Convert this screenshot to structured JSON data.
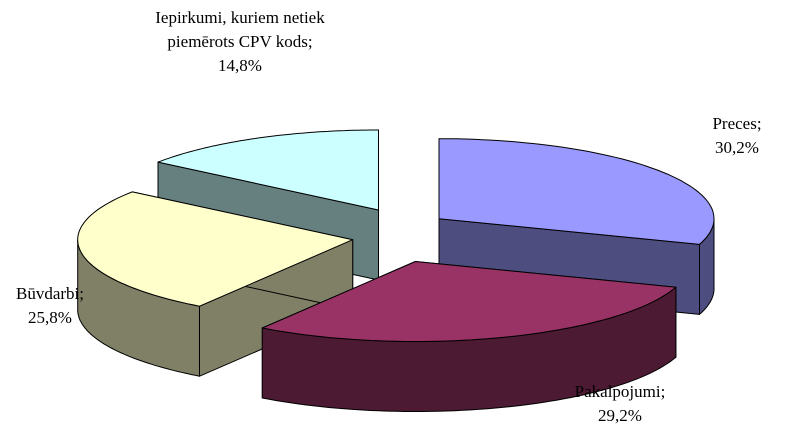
{
  "chart_data": {
    "type": "pie",
    "categories": [
      "Preces;",
      "Pakalpojumi;",
      "Būvdarbi;",
      "Iepirkumi, kuriem netiek piemērots CPV kods;"
    ],
    "values": [
      30.2,
      29.2,
      25.8,
      14.8
    ],
    "value_labels": [
      "30,2%",
      "29,2%",
      "25,8%",
      "14,8%"
    ],
    "colors": [
      "#9999ff",
      "#993366",
      "#ffffcc",
      "#ccffff"
    ]
  }
}
